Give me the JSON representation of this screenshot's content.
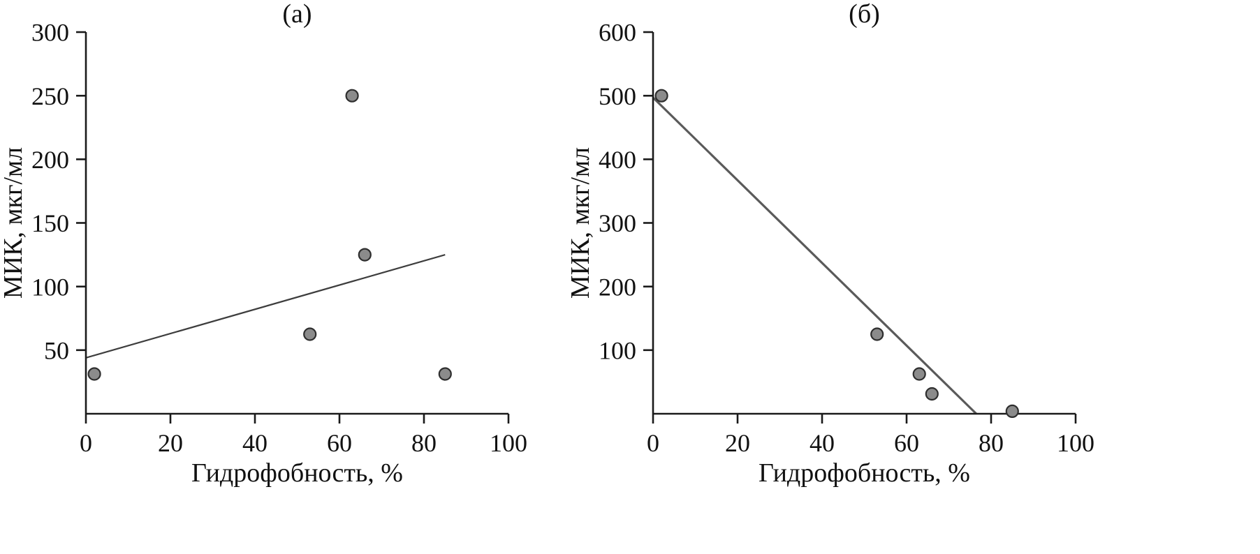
{
  "chart_data": [
    {
      "type": "scatter",
      "panel_label": "(а)",
      "xlabel": "Гидрофобность, %",
      "ylabel": "МИК, мкг/мл",
      "xlim": [
        0,
        100
      ],
      "ylim": [
        0,
        300
      ],
      "xticks": [
        0,
        20,
        40,
        60,
        80,
        100
      ],
      "yticks": [
        50,
        100,
        150,
        200,
        250,
        300
      ],
      "grid": false,
      "legend": false,
      "points": [
        [
          2,
          31.25
        ],
        [
          53,
          62.5
        ],
        [
          63,
          250
        ],
        [
          66,
          125
        ],
        [
          85,
          31.25
        ]
      ],
      "trendline": {
        "x1": 0,
        "y1": 44,
        "x2": 85,
        "y2": 125
      }
    },
    {
      "type": "scatter",
      "panel_label": "(б)",
      "xlabel": "Гидрофобность, %",
      "ylabel": "МИК, мкг/мл",
      "xlim": [
        0,
        100
      ],
      "ylim": [
        0,
        600
      ],
      "xticks": [
        0,
        20,
        40,
        60,
        80,
        100
      ],
      "yticks": [
        100,
        200,
        300,
        400,
        500,
        600
      ],
      "grid": false,
      "legend": false,
      "points": [
        [
          2,
          500
        ],
        [
          53,
          125
        ],
        [
          63,
          62.5
        ],
        [
          66,
          31.25
        ],
        [
          85,
          3.9
        ]
      ],
      "trendline": {
        "x1": 0,
        "y1": 497,
        "x2": 76.5,
        "y2": 0
      }
    }
  ],
  "colors": {
    "axis": "#1a1a1a",
    "tick_text": "#111111",
    "point_fill": "#8b8b8b",
    "point_stroke": "#2e2e2e",
    "trend_a": "#3d3d3d",
    "trend_b": "#5a5a5a",
    "background": "#ffffff"
  }
}
